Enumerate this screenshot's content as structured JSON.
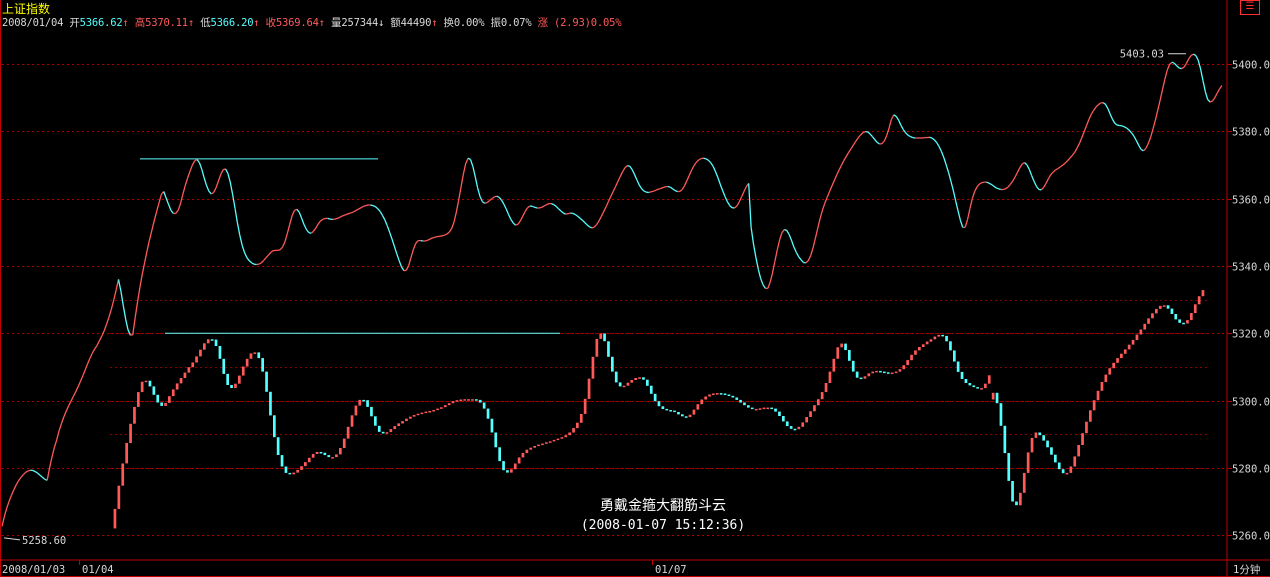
{
  "header": {
    "title": "上证指数",
    "date": "2008/01/04",
    "open_label": "开",
    "open_value": "5366.62",
    "high_label": "高",
    "high_value": "5370.11",
    "low_label": "低",
    "low_value": "5366.20",
    "close_label": "收",
    "close_value": "5369.64",
    "volume_label": "量",
    "volume_value": "257344",
    "amount_label": "额",
    "amount_value": "44490",
    "turnover_label": "换",
    "turnover_value": "0.00%",
    "amplitude_label": "振",
    "amplitude_value": "0.07%",
    "change_label": "涨",
    "change_value": "(2.93)0.05%",
    "arrow_up": "↑",
    "arrow_down": "↓",
    "menu_icon": "☰"
  },
  "annotation": {
    "line1": "勇戴金箍大翻筋斗云",
    "line2": "(2008-01-07 15:12:36)"
  },
  "colors": {
    "up": "#ff5a5a",
    "down": "#54ffff",
    "grid": "#aa0000",
    "frame": "#c00000",
    "trend": "#54ffff",
    "text": "#d8d8d8"
  },
  "chart_data": [
    {
      "type": "line",
      "name": "upper",
      "ylim": [
        5255,
        5408
      ],
      "yticks": [
        5260.0,
        5280.0,
        5300.0,
        5320.0,
        5340.0,
        5360.0,
        5380.0,
        5400.0
      ],
      "xticks": [
        "2008/01/03",
        "01/04",
        "01/07"
      ],
      "x_unit": "1分钟",
      "markers": {
        "high": "5403.03",
        "low": "5258.60"
      },
      "y": [
        5262.6,
        5265.6,
        5268.1,
        5270.1,
        5271.9,
        5273.5,
        5275.0,
        5276.2,
        5277.2,
        5278.0,
        5278.7,
        5279.1,
        5279.3,
        5279.2,
        5278.9,
        5278.4,
        5277.8,
        5277.2,
        5276.6,
        5276.3,
        5280.0,
        5283.1,
        5286.0,
        5288.3,
        5291.0,
        5293.2,
        5295.1,
        5296.8,
        5298.4,
        5299.8,
        5301.2,
        5302.6,
        5304.1,
        5305.7,
        5307.4,
        5309.1,
        5310.9,
        5312.6,
        5314.1,
        5315.3,
        5316.4,
        5317.8,
        5319.2,
        5320.8,
        5322.7,
        5324.8,
        5327.2,
        5329.9,
        5332.9,
        5336.0,
        5332.5,
        5328.2,
        5324.1,
        5321.0,
        5319.4,
        5319.5,
        5324.7,
        5329.4,
        5333.6,
        5337.6,
        5341.1,
        5344.5,
        5347.6,
        5350.5,
        5353.4,
        5356.1,
        5358.7,
        5361.2,
        5362.1,
        5360.2,
        5358.3,
        5356.6,
        5355.6,
        5355.6,
        5356.4,
        5358.4,
        5361.1,
        5363.7,
        5366.0,
        5368.0,
        5369.9,
        5371.2,
        5371.6,
        5370.7,
        5368.7,
        5366.2,
        5363.9,
        5362.2,
        5361.4,
        5361.8,
        5363.2,
        5365.2,
        5367.2,
        5368.6,
        5368.8,
        5367.5,
        5364.8,
        5361.1,
        5357.0,
        5352.8,
        5349.1,
        5346.1,
        5343.9,
        5342.4,
        5341.5,
        5340.9,
        5340.5,
        5340.4,
        5340.5,
        5340.9,
        5341.6,
        5342.4,
        5343.2,
        5344.0,
        5344.5,
        5344.6,
        5344.6,
        5344.8,
        5345.6,
        5347.2,
        5349.7,
        5352.4,
        5354.9,
        5356.5,
        5356.8,
        5355.9,
        5354.2,
        5352.3,
        5350.8,
        5349.9,
        5349.7,
        5350.3,
        5351.3,
        5352.5,
        5353.4,
        5353.9,
        5354.1,
        5354.1,
        5353.9,
        5353.8,
        5353.9,
        5354.1,
        5354.4,
        5354.8,
        5355.1,
        5355.3,
        5355.6,
        5355.8,
        5356.1,
        5356.5,
        5356.9,
        5357.3,
        5357.7,
        5357.9,
        5358.1,
        5358.1,
        5357.9,
        5357.6,
        5357.0,
        5356.2,
        5355.0,
        5353.6,
        5351.9,
        5350.0,
        5348.0,
        5345.8,
        5343.6,
        5341.5,
        5339.7,
        5338.6,
        5338.7,
        5340.1,
        5342.5,
        5344.9,
        5346.7,
        5347.5,
        5347.5,
        5347.4,
        5347.4,
        5347.6,
        5348.0,
        5348.3,
        5348.5,
        5348.7,
        5348.8,
        5348.9,
        5349.1,
        5349.4,
        5350.0,
        5351.0,
        5352.9,
        5355.8,
        5359.4,
        5363.4,
        5367.3,
        5370.4,
        5372.0,
        5371.6,
        5369.5,
        5366.4,
        5363.2,
        5360.6,
        5359.1,
        5358.6,
        5358.8,
        5359.4,
        5360.0,
        5360.5,
        5360.7,
        5360.4,
        5359.6,
        5358.4,
        5356.9,
        5355.3,
        5353.8,
        5352.7,
        5352.1,
        5352.4,
        5353.4,
        5354.8,
        5356.2,
        5357.3,
        5357.8,
        5357.7,
        5357.4,
        5357.2,
        5357.2,
        5357.4,
        5357.8,
        5358.2,
        5358.5,
        5358.5,
        5358.2,
        5357.7,
        5357.0,
        5356.3,
        5355.7,
        5355.4,
        5355.5,
        5355.7,
        5355.6,
        5355.3,
        5354.8,
        5354.2,
        5353.6,
        5352.9,
        5352.2,
        5351.6,
        5351.3,
        5351.5,
        5352.2,
        5353.3,
        5354.7,
        5356.1,
        5357.6,
        5359.1,
        5360.6,
        5362.1,
        5363.6,
        5365.1,
        5366.6,
        5368.0,
        5369.2,
        5369.8,
        5369.6,
        5368.6,
        5367.1,
        5365.5,
        5364.0,
        5362.9,
        5362.2,
        5361.9,
        5361.8,
        5362.0,
        5362.2,
        5362.5,
        5362.8,
        5363.0,
        5363.3,
        5363.5,
        5363.6,
        5363.4,
        5362.9,
        5362.4,
        5362.1,
        5362.1,
        5362.7,
        5363.8,
        5365.3,
        5366.9,
        5368.5,
        5369.8,
        5370.8,
        5371.5,
        5371.9,
        5372.0,
        5371.8,
        5371.4,
        5370.7,
        5369.6,
        5368.0,
        5366.3,
        5364.3,
        5362.4,
        5360.6,
        5359.1,
        5357.9,
        5357.3,
        5357.2,
        5357.8,
        5359.0,
        5360.5,
        5362.1,
        5363.6,
        5364.5,
        5351.5,
        5346.5,
        5342.5,
        5339.0,
        5336.3,
        5334.4,
        5333.3,
        5333.3,
        5335.1,
        5337.9,
        5341.4,
        5344.8,
        5347.8,
        5349.9,
        5350.8,
        5350.5,
        5349.3,
        5347.5,
        5345.6,
        5344.0,
        5342.7,
        5341.8,
        5341.0,
        5340.9,
        5341.5,
        5343.0,
        5345.3,
        5348.1,
        5351.1,
        5354.1,
        5356.6,
        5358.6,
        5360.4,
        5362.1,
        5363.8,
        5365.4,
        5367.0,
        5368.5,
        5369.9,
        5371.3,
        5372.5,
        5373.7,
        5374.8,
        5375.9,
        5377.0,
        5378.0,
        5378.9,
        5379.6,
        5379.9,
        5379.8,
        5379.2,
        5378.4,
        5377.5,
        5376.7,
        5376.2,
        5376.3,
        5377.1,
        5378.7,
        5381.0,
        5383.5,
        5384.9,
        5384.4,
        5383.3,
        5381.8,
        5380.5,
        5379.5,
        5378.8,
        5378.4,
        5378.1,
        5378.0,
        5378.0,
        5378.0,
        5378.0,
        5378.1,
        5378.1,
        5378.2,
        5378.0,
        5377.5,
        5376.7,
        5375.5,
        5374.0,
        5372.2,
        5370.1,
        5367.8,
        5365.2,
        5362.4,
        5359.4,
        5356.4,
        5353.5,
        5351.4,
        5351.5,
        5353.7,
        5357.0,
        5360.0,
        5362.1,
        5363.5,
        5364.3,
        5364.7,
        5364.9,
        5364.9,
        5364.6,
        5364.2,
        5363.7,
        5363.2,
        5362.9,
        5362.7,
        5362.7,
        5362.9,
        5363.4,
        5364.2,
        5365.2,
        5366.4,
        5367.8,
        5369.2,
        5370.3,
        5370.7,
        5370.0,
        5368.6,
        5366.8,
        5365.1,
        5363.6,
        5362.7,
        5362.6,
        5363.3,
        5364.5,
        5365.9,
        5367.1,
        5367.9,
        5368.5,
        5368.9,
        5369.4,
        5369.9,
        5370.5,
        5371.2,
        5372.0,
        5372.8,
        5373.7,
        5374.9,
        5376.3,
        5378.0,
        5379.8,
        5381.6,
        5383.4,
        5385.0,
        5386.2,
        5387.2,
        5387.9,
        5388.4,
        5388.5,
        5388.0,
        5386.8,
        5385.1,
        5383.5,
        5382.3,
        5381.8,
        5381.7,
        5381.6,
        5381.3,
        5380.9,
        5380.3,
        5379.5,
        5378.5,
        5377.2,
        5375.8,
        5374.6,
        5374.2,
        5374.9,
        5376.4,
        5378.3,
        5380.7,
        5383.3,
        5386.3,
        5389.3,
        5392.4,
        5395.5,
        5398.2,
        5399.9,
        5400.5,
        5400.2,
        5399.4,
        5398.8,
        5398.6,
        5399.0,
        5400.1,
        5401.5,
        5402.5,
        5402.9,
        5402.5,
        5401.1,
        5398.5,
        5395.0,
        5391.7,
        5389.4,
        5388.7,
        5389.0,
        5390.0,
        5391.3,
        5392.6,
        5393.6
      ]
    },
    {
      "type": "candlestick",
      "name": "lower",
      "ylim": [
        5258.5,
        5332
      ],
      "yticks": [
        5260.0,
        5280.0,
        5300.0,
        5320.0
      ],
      "close": [
        5267.8,
        5274.7,
        5281.3,
        5287.4,
        5293.1,
        5298.1,
        5302.5,
        5305.6,
        5305.9,
        5304.2,
        5301.7,
        5299.4,
        5298.4,
        5299.3,
        5301.3,
        5303.3,
        5305.1,
        5306.7,
        5308.3,
        5309.9,
        5311.3,
        5313.1,
        5315.1,
        5317.0,
        5318.2,
        5318.1,
        5316.2,
        5312.4,
        5307.9,
        5304.6,
        5303.7,
        5305.0,
        5307.4,
        5310.1,
        5312.4,
        5314.0,
        5314.3,
        5312.6,
        5308.6,
        5302.6,
        5295.6,
        5289.1,
        5283.8,
        5280.4,
        5278.5,
        5278.1,
        5278.6,
        5279.4,
        5280.5,
        5281.7,
        5283.0,
        5284.1,
        5284.7,
        5284.5,
        5283.8,
        5283.2,
        5283.2,
        5284.0,
        5285.9,
        5288.7,
        5292.2,
        5295.6,
        5298.5,
        5300.2,
        5300.1,
        5298.1,
        5295.3,
        5292.5,
        5290.7,
        5290.2,
        5290.6,
        5291.5,
        5292.4,
        5293.2,
        5293.9,
        5294.6,
        5295.2,
        5295.7,
        5296.1,
        5296.4,
        5296.7,
        5296.9,
        5297.2,
        5297.6,
        5298.0,
        5298.6,
        5299.2,
        5299.8,
        5300.1,
        5300.3,
        5300.4,
        5300.4,
        5300.4,
        5300.2,
        5299.4,
        5297.6,
        5294.6,
        5290.5,
        5286.1,
        5282.0,
        5279.3,
        5278.6,
        5279.6,
        5281.3,
        5283.1,
        5284.4,
        5285.4,
        5286.0,
        5286.5,
        5286.9,
        5287.2,
        5287.6,
        5287.9,
        5288.3,
        5288.7,
        5289.1,
        5289.7,
        5290.5,
        5291.8,
        5293.4,
        5296.0,
        5300.5,
        5306.5,
        5313.0,
        5318.3,
        5319.9,
        5317.6,
        5313.0,
        5308.6,
        5305.4,
        5304.2,
        5304.4,
        5305.3,
        5306.1,
        5306.7,
        5306.9,
        5306.2,
        5304.4,
        5302.0,
        5299.8,
        5298.3,
        5297.5,
        5297.2,
        5297.0,
        5296.6,
        5295.9,
        5295.3,
        5295.1,
        5295.8,
        5297.3,
        5298.9,
        5300.3,
        5301.2,
        5301.8,
        5302.1,
        5302.2,
        5302.1,
        5301.8,
        5301.4,
        5300.9,
        5300.2,
        5299.4,
        5298.6,
        5297.9,
        5297.5,
        5297.5,
        5297.7,
        5297.9,
        5297.9,
        5297.6,
        5296.7,
        5295.4,
        5293.8,
        5292.4,
        5291.6,
        5291.5,
        5292.2,
        5293.5,
        5295.1,
        5296.8,
        5298.6,
        5300.4,
        5302.5,
        5305.2,
        5308.6,
        5312.4,
        5315.8,
        5316.9,
        5315.0,
        5311.8,
        5308.6,
        5306.8,
        5306.5,
        5307.2,
        5308.1,
        5308.6,
        5308.8,
        5308.6,
        5308.4,
        5308.3,
        5308.3,
        5308.6,
        5309.3,
        5310.5,
        5312.0,
        5313.6,
        5314.9,
        5315.9,
        5316.7,
        5317.5,
        5318.2,
        5319.0,
        5319.5,
        5319.2,
        5317.6,
        5314.9,
        5311.6,
        5308.5,
        5306.4,
        5305.2,
        5304.5,
        5304.0,
        5303.6,
        5303.7,
        5305.0,
        5307.5,
        5302.3,
        5299.2,
        5292.5,
        5284.4,
        5276.1,
        5270.0,
        5268.9,
        5272.6,
        5278.5,
        5284.6,
        5288.9,
        5290.5,
        5289.7,
        5288.1,
        5286.1,
        5283.9,
        5281.6,
        5279.6,
        5278.4,
        5278.5,
        5280.4,
        5283.4,
        5286.8,
        5290.3,
        5293.7,
        5297.1,
        5300.1,
        5302.9,
        5305.5,
        5307.7,
        5309.6,
        5311.2,
        5312.6,
        5313.9,
        5315.2,
        5316.6,
        5318.0,
        5319.6,
        5321.1,
        5322.8,
        5324.4,
        5325.9,
        5327.2,
        5328.1,
        5328.3,
        5327.3,
        5325.7,
        5324.1,
        5323.1,
        5322.9,
        5323.9,
        5326.0,
        5328.6,
        5331.0,
        5332.8
      ],
      "open": [
        5262.0,
        5267.8,
        5274.7,
        5281.3,
        5287.4,
        5293.1,
        5298.1,
        5302.5,
        5305.6,
        5305.9,
        5304.2,
        5301.7,
        5299.4,
        5298.4,
        5299.3,
        5301.3,
        5303.3,
        5305.1,
        5306.7,
        5308.3,
        5309.9,
        5311.3,
        5313.1,
        5315.1,
        5317.0,
        5318.2,
        5318.1,
        5316.2,
        5312.4,
        5307.9,
        5304.6,
        5303.7,
        5305.0,
        5307.4,
        5310.1,
        5312.4,
        5314.0,
        5314.3,
        5312.6,
        5308.6,
        5302.6,
        5295.6,
        5289.1,
        5283.8,
        5280.4,
        5278.5,
        5278.1,
        5278.6,
        5279.4,
        5280.5,
        5281.7,
        5283.0,
        5284.1,
        5284.7,
        5284.5,
        5283.8,
        5283.2,
        5283.2,
        5284.0,
        5285.9,
        5288.7,
        5292.2,
        5295.6,
        5298.5,
        5300.2,
        5300.1,
        5298.1,
        5295.3,
        5292.5,
        5290.7,
        5290.2,
        5290.6,
        5291.5,
        5292.4,
        5293.2,
        5293.9,
        5294.6,
        5295.2,
        5295.7,
        5296.1,
        5296.4,
        5296.7,
        5296.9,
        5297.2,
        5297.6,
        5298.0,
        5298.6,
        5299.2,
        5299.8,
        5300.1,
        5300.3,
        5300.4,
        5300.4,
        5300.4,
        5300.2,
        5299.4,
        5297.6,
        5294.6,
        5290.5,
        5286.1,
        5282.0,
        5279.3,
        5278.6,
        5279.6,
        5281.3,
        5283.1,
        5284.4,
        5285.4,
        5286.0,
        5286.5,
        5286.9,
        5287.2,
        5287.6,
        5287.9,
        5288.3,
        5288.7,
        5289.1,
        5289.7,
        5290.5,
        5291.8,
        5293.4,
        5296.0,
        5300.5,
        5306.5,
        5313.0,
        5318.3,
        5319.9,
        5317.6,
        5313.0,
        5308.6,
        5305.4,
        5304.2,
        5304.4,
        5305.3,
        5306.1,
        5306.7,
        5306.9,
        5306.2,
        5304.4,
        5302.0,
        5299.8,
        5298.3,
        5297.5,
        5297.2,
        5297.0,
        5296.6,
        5295.9,
        5295.3,
        5295.1,
        5295.8,
        5297.3,
        5298.9,
        5300.3,
        5301.2,
        5301.8,
        5302.1,
        5302.2,
        5302.1,
        5301.8,
        5301.4,
        5300.9,
        5300.2,
        5299.4,
        5298.6,
        5297.9,
        5297.5,
        5297.5,
        5297.7,
        5297.9,
        5297.9,
        5297.6,
        5296.7,
        5295.4,
        5293.8,
        5292.4,
        5291.6,
        5291.5,
        5292.2,
        5293.5,
        5295.1,
        5296.8,
        5298.6,
        5300.4,
        5302.5,
        5305.2,
        5308.6,
        5312.4,
        5315.8,
        5316.9,
        5315.0,
        5311.8,
        5308.6,
        5306.8,
        5306.5,
        5307.2,
        5308.1,
        5308.6,
        5308.8,
        5308.6,
        5308.4,
        5308.3,
        5308.3,
        5308.6,
        5309.3,
        5310.5,
        5312.0,
        5313.6,
        5314.9,
        5315.9,
        5316.7,
        5317.5,
        5318.2,
        5319.0,
        5319.5,
        5319.2,
        5317.6,
        5314.9,
        5311.6,
        5308.5,
        5306.4,
        5305.2,
        5304.5,
        5304.0,
        5303.6,
        5303.7,
        5305.0,
        5300.3,
        5302.3,
        5299.2,
        5292.5,
        5284.4,
        5276.1,
        5270.0,
        5268.9,
        5272.6,
        5278.5,
        5284.6,
        5288.9,
        5290.5,
        5289.7,
        5288.1,
        5286.1,
        5283.9,
        5281.6,
        5279.6,
        5278.4,
        5278.5,
        5280.4,
        5283.4,
        5286.8,
        5290.3,
        5293.7,
        5297.1,
        5300.1,
        5302.9,
        5305.5,
        5307.7,
        5309.6,
        5311.2,
        5312.6,
        5313.9,
        5315.2,
        5316.6,
        5318.0,
        5319.6,
        5321.1,
        5322.8,
        5324.4,
        5325.9,
        5327.2,
        5328.1,
        5328.3,
        5327.3,
        5325.7,
        5324.1,
        5323.1,
        5322.9,
        5323.9,
        5326.0,
        5328.6,
        5331.0
      ]
    }
  ]
}
